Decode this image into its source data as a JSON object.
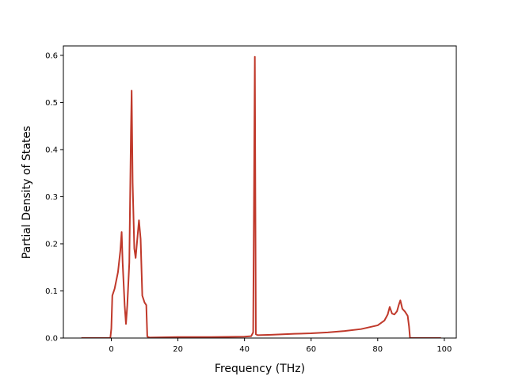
{
  "chart_data": {
    "type": "line",
    "title": "",
    "xlabel": "Frequency (THz)",
    "ylabel": "Partial Density of States",
    "xlim": [
      -14.4,
      103.6
    ],
    "ylim": [
      0,
      0.62
    ],
    "xticks": [
      0,
      20,
      40,
      60,
      80,
      100
    ],
    "yticks": [
      0.0,
      0.1,
      0.2,
      0.3,
      0.4,
      0.5,
      0.6
    ],
    "xtick_labels": [
      "0",
      "20",
      "40",
      "60",
      "80",
      "100"
    ],
    "ytick_labels": [
      "0.0",
      "0.1",
      "0.2",
      "0.3",
      "0.4",
      "0.5",
      "0.6"
    ],
    "grid": false,
    "legend": "none",
    "series": [
      {
        "color": "#c0392b",
        "points": [
          [
            -9.0,
            0.0
          ],
          [
            -0.3,
            0.0
          ],
          [
            0.0,
            0.02
          ],
          [
            0.3,
            0.09
          ],
          [
            1.0,
            0.105
          ],
          [
            2.0,
            0.14
          ],
          [
            2.7,
            0.185
          ],
          [
            3.1,
            0.225
          ],
          [
            3.4,
            0.16
          ],
          [
            4.0,
            0.07
          ],
          [
            4.4,
            0.03
          ],
          [
            4.8,
            0.07
          ],
          [
            5.4,
            0.16
          ],
          [
            5.9,
            0.44
          ],
          [
            6.1,
            0.525
          ],
          [
            6.4,
            0.33
          ],
          [
            6.9,
            0.19
          ],
          [
            7.3,
            0.17
          ],
          [
            7.8,
            0.21
          ],
          [
            8.3,
            0.25
          ],
          [
            8.8,
            0.21
          ],
          [
            9.3,
            0.09
          ],
          [
            10.0,
            0.075
          ],
          [
            10.5,
            0.07
          ],
          [
            10.8,
            0.003
          ],
          [
            11.5,
            0.001
          ],
          [
            20.0,
            0.002
          ],
          [
            30.0,
            0.002
          ],
          [
            40.0,
            0.003
          ],
          [
            42.0,
            0.004
          ],
          [
            42.6,
            0.012
          ],
          [
            43.1,
            0.597
          ],
          [
            43.4,
            0.008
          ],
          [
            44.0,
            0.006
          ],
          [
            48.0,
            0.007
          ],
          [
            55.0,
            0.009
          ],
          [
            60.0,
            0.01
          ],
          [
            65.0,
            0.012
          ],
          [
            70.0,
            0.015
          ],
          [
            75.0,
            0.019
          ],
          [
            80.0,
            0.027
          ],
          [
            82.0,
            0.037
          ],
          [
            83.0,
            0.05
          ],
          [
            83.6,
            0.066
          ],
          [
            84.3,
            0.052
          ],
          [
            85.0,
            0.05
          ],
          [
            85.8,
            0.057
          ],
          [
            86.4,
            0.072
          ],
          [
            86.8,
            0.08
          ],
          [
            87.4,
            0.062
          ],
          [
            88.2,
            0.056
          ],
          [
            89.0,
            0.047
          ],
          [
            89.4,
            0.025
          ],
          [
            89.7,
            0.0
          ],
          [
            99.0,
            0.0
          ]
        ]
      }
    ]
  }
}
